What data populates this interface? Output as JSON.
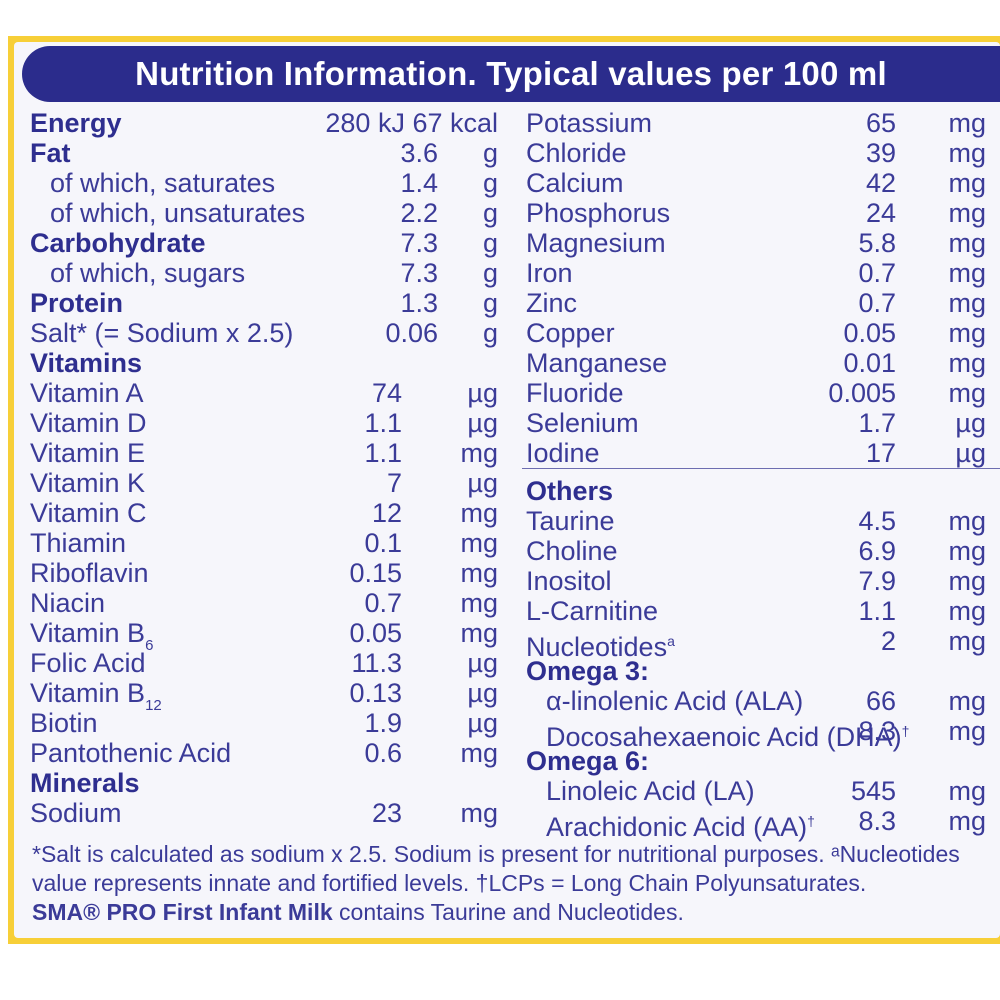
{
  "header": {
    "title": "Nutrition Information. Typical values per 100 ml"
  },
  "left_rows": [
    {
      "name": "Energy",
      "value": "280 kJ 67 kcal",
      "unit": "",
      "bold": true
    },
    {
      "name": "Fat",
      "value": "3.6",
      "unit": "g",
      "bold": true
    },
    {
      "name": "of which, saturates",
      "value": "1.4",
      "unit": "g",
      "indent": true
    },
    {
      "name": "of which, unsaturates",
      "value": "2.2",
      "unit": "g",
      "indent": true
    },
    {
      "name": "Carbohydrate",
      "value": "7.3",
      "unit": "g",
      "bold": true
    },
    {
      "name": "of which, sugars",
      "value": "7.3",
      "unit": "g",
      "indent": true
    },
    {
      "name": "Protein",
      "value": "1.3",
      "unit": "g",
      "bold": true
    },
    {
      "name": "Salt* (= Sodium x 2.5)",
      "value": "0.06",
      "unit": "g"
    },
    {
      "name": "Vitamins",
      "value": "",
      "unit": "",
      "bold": true
    },
    {
      "name": "Vitamin A",
      "value": "74",
      "unit": "µg"
    },
    {
      "name": "Vitamin D",
      "value": "1.1",
      "unit": "µg"
    },
    {
      "name": "Vitamin E",
      "value": "1.1",
      "unit": "mg"
    },
    {
      "name": "Vitamin K",
      "value": "7",
      "unit": "µg"
    },
    {
      "name": "Vitamin C",
      "value": "12",
      "unit": "mg"
    },
    {
      "name": "Thiamin",
      "value": "0.1",
      "unit": "mg"
    },
    {
      "name": "Riboflavin",
      "value": "0.15",
      "unit": "mg"
    },
    {
      "name": "Niacin",
      "value": "0.7",
      "unit": "mg"
    },
    {
      "name": "Vitamin B",
      "sub": "6",
      "value": "0.05",
      "unit": "mg"
    },
    {
      "name": "Folic Acid",
      "value": "11.3",
      "unit": "µg"
    },
    {
      "name": "Vitamin B",
      "sub": "12",
      "value": "0.13",
      "unit": "µg"
    },
    {
      "name": "Biotin",
      "value": "1.9",
      "unit": "µg"
    },
    {
      "name": "Pantothenic Acid",
      "value": "0.6",
      "unit": "mg"
    },
    {
      "name": "Minerals",
      "value": "",
      "unit": "",
      "bold": true
    },
    {
      "name": "Sodium",
      "value": "23",
      "unit": "mg"
    }
  ],
  "right_rows": [
    {
      "name": "Potassium",
      "value": "65",
      "unit": "mg"
    },
    {
      "name": "Chloride",
      "value": "39",
      "unit": "mg"
    },
    {
      "name": "Calcium",
      "value": "42",
      "unit": "mg"
    },
    {
      "name": "Phosphorus",
      "value": "24",
      "unit": "mg"
    },
    {
      "name": "Magnesium",
      "value": "5.8",
      "unit": "mg"
    },
    {
      "name": "Iron",
      "value": "0.7",
      "unit": "mg"
    },
    {
      "name": "Zinc",
      "value": "0.7",
      "unit": "mg"
    },
    {
      "name": "Copper",
      "value": "0.05",
      "unit": "mg"
    },
    {
      "name": "Manganese",
      "value": "0.01",
      "unit": "mg"
    },
    {
      "name": "Fluoride",
      "value": "0.005",
      "unit": "mg"
    },
    {
      "name": "Selenium",
      "value": "1.7",
      "unit": "µg"
    },
    {
      "name": "Iodine",
      "value": "17",
      "unit": "µg"
    }
  ],
  "others": {
    "heading": "Others",
    "rows": [
      {
        "name": "Taurine",
        "value": "4.5",
        "unit": "mg"
      },
      {
        "name": "Choline",
        "value": "6.9",
        "unit": "mg"
      },
      {
        "name": "Inositol",
        "value": "7.9",
        "unit": "mg"
      },
      {
        "name": "L-Carnitine",
        "value": "1.1",
        "unit": "mg"
      },
      {
        "name": "Nucleotides",
        "sup": "a",
        "value": "2",
        "unit": "mg"
      }
    ],
    "omega3_heading": "Omega 3:",
    "omega3_rows": [
      {
        "name": "α-linolenic Acid (ALA)",
        "value": "66",
        "unit": "mg"
      },
      {
        "name": "Docosahexaenoic Acid (DHA)",
        "sup": "†",
        "value": "8.3",
        "unit": "mg"
      }
    ],
    "omega6_heading": "Omega 6:",
    "omega6_rows": [
      {
        "name": "Linoleic Acid (LA)",
        "value": "545",
        "unit": "mg"
      },
      {
        "name": "Arachidonic Acid (AA)",
        "sup": "†",
        "value": "8.3",
        "unit": "mg"
      }
    ]
  },
  "footnotes": {
    "line1": "*Salt is calculated as sodium x 2.5. Sodium is present for nutritional purposes. ᵃNucleotides",
    "line2": "value represents innate and fortified levels. †LCPs = Long Chain Polyunsaturates.",
    "line3_brand": "SMA® PRO First Infant Milk",
    "line3_rest": " contains Taurine and Nucleotides."
  },
  "colors": {
    "header_bg": "#2b2c8c",
    "text": "#3b3b98",
    "frame": "#f7cf38",
    "panel": "#f6f6fb"
  }
}
